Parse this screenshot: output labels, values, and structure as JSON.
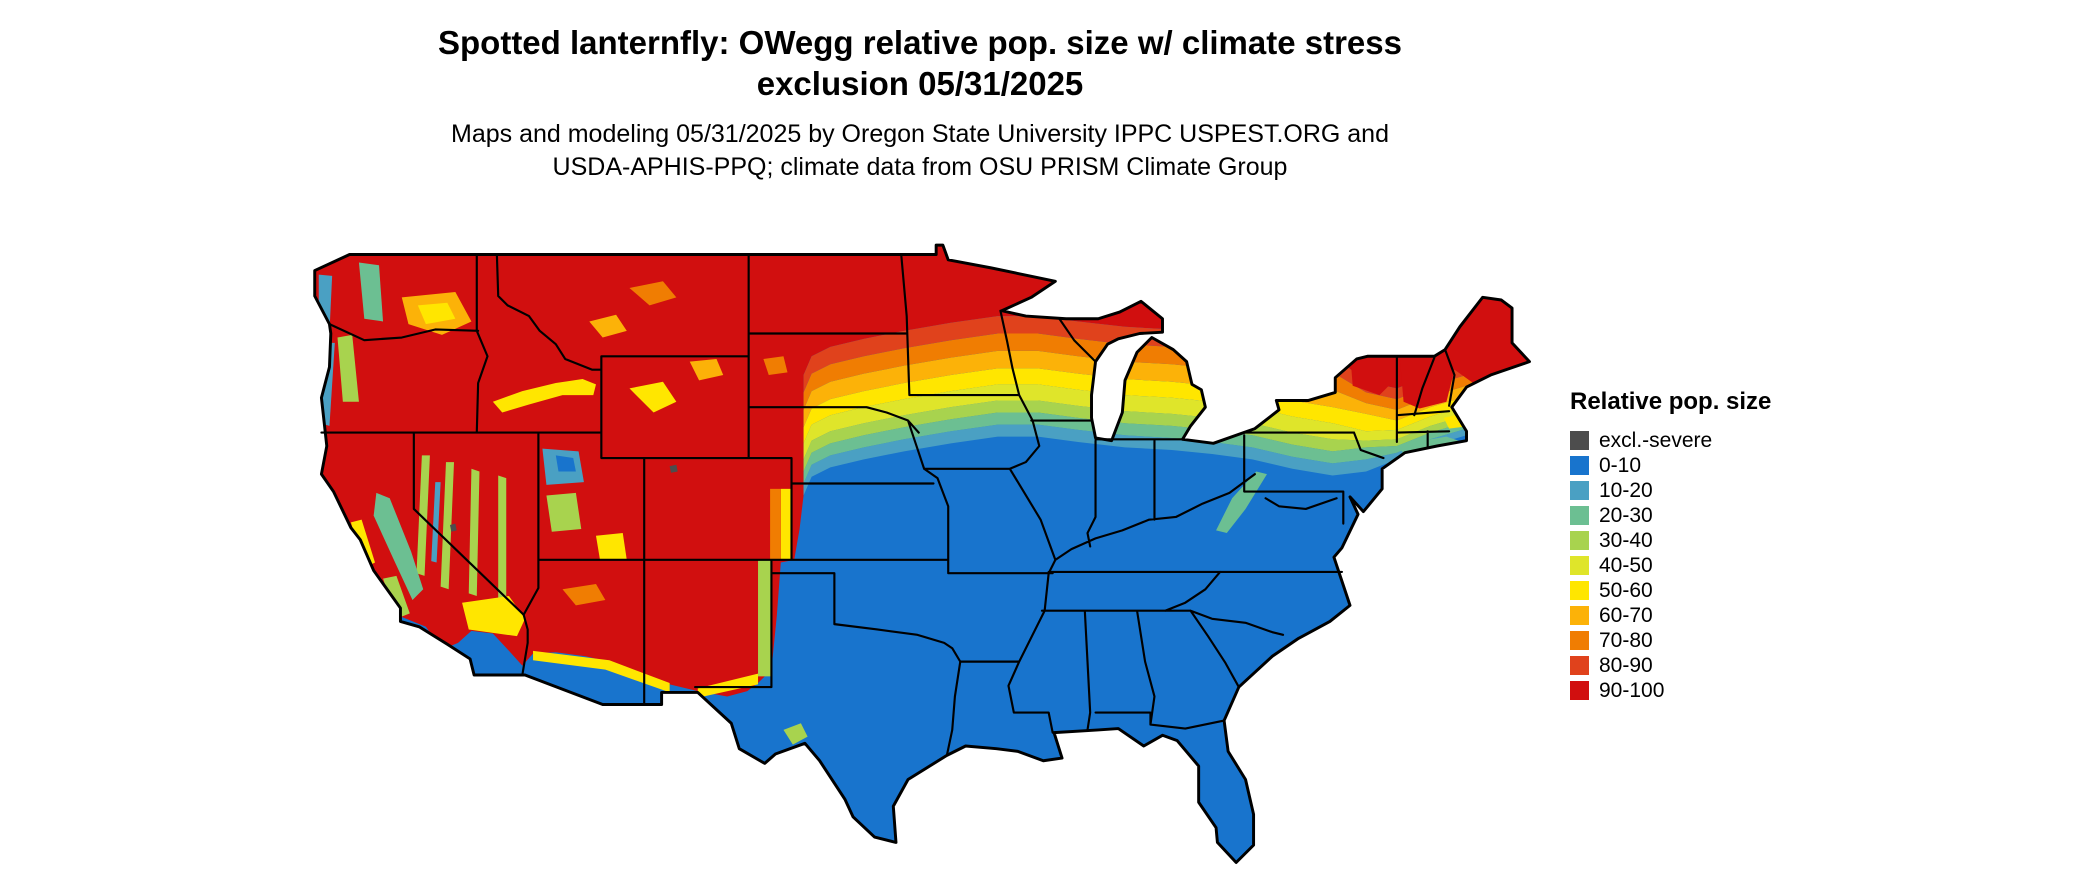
{
  "header": {
    "title_line1": "Spotted lanternfly: OWegg relative pop. size w/ climate stress",
    "title_line2": "exclusion 05/31/2025",
    "subtitle_line1": "Maps and modeling 05/31/2025 by Oregon State University IPPC USPEST.ORG and",
    "subtitle_line2": "USDA-APHIS-PPQ; climate data from OSU PRISM Climate Group"
  },
  "legend": {
    "title": "Relative pop. size",
    "items": [
      {
        "label": "excl.-severe",
        "color": "#4d4d4d"
      },
      {
        "label": "0-10",
        "color": "#1874cd"
      },
      {
        "label": "10-20",
        "color": "#4aa0c3"
      },
      {
        "label": "20-30",
        "color": "#6cbf92"
      },
      {
        "label": "30-40",
        "color": "#a8d34e"
      },
      {
        "label": "40-50",
        "color": "#dfe52a"
      },
      {
        "label": "50-60",
        "color": "#ffe600"
      },
      {
        "label": "60-70",
        "color": "#fcb208"
      },
      {
        "label": "70-80",
        "color": "#f07d02"
      },
      {
        "label": "80-90",
        "color": "#e0421c"
      },
      {
        "label": "90-100",
        "color": "#d10f0f"
      }
    ]
  }
}
